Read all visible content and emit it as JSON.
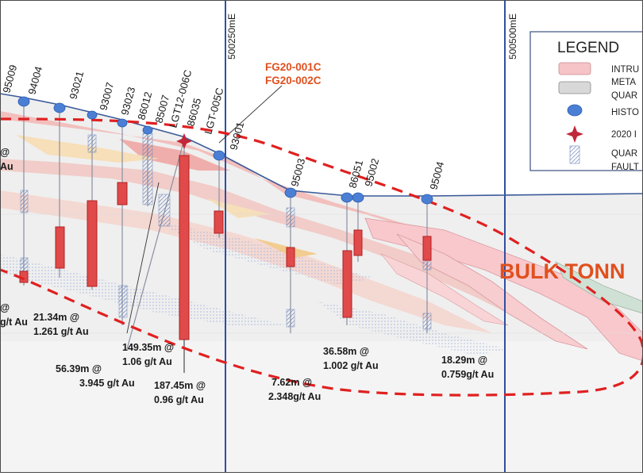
{
  "easting_labels": [
    {
      "id": "easting-500250",
      "text": "500250mE"
    },
    {
      "id": "easting-500500",
      "text": "500500mE"
    }
  ],
  "new_holes": [
    "FG20-001C",
    "FG20-002C"
  ],
  "collars": [
    {
      "id": "95009",
      "label": "95009"
    },
    {
      "id": "94004",
      "label": "94004"
    },
    {
      "id": "93021",
      "label": "93021"
    },
    {
      "id": "93007",
      "label": "93007"
    },
    {
      "id": "93023",
      "label": "93023"
    },
    {
      "id": "86012",
      "label": "86012"
    },
    {
      "id": "85007",
      "label": "85007"
    },
    {
      "id": "LGT12-006C",
      "label": "LGT12-006C"
    },
    {
      "id": "86035",
      "label": "86035"
    },
    {
      "id": "LGT-005C",
      "label": "LGT-005C"
    },
    {
      "id": "93001",
      "label": "93001"
    },
    {
      "id": "95003",
      "label": "95003"
    },
    {
      "id": "86051",
      "label": "86051"
    },
    {
      "id": "95002",
      "label": "95002"
    },
    {
      "id": "95004",
      "label": "95004"
    }
  ],
  "intercepts": [
    {
      "id": "left-edge",
      "line1": "@",
      "line2": "g/t Au"
    },
    {
      "id": "21-34",
      "line1": "21.34m @",
      "line2": "1.261 g/t Au"
    },
    {
      "id": "56-39",
      "line1": "56.39m @",
      "line2": "3.945 g/t Au"
    },
    {
      "id": "149-35",
      "line1": "149.35m @",
      "line2": "1.06 g/t Au"
    },
    {
      "id": "187-45",
      "line1": "187.45m @",
      "line2": "0.96 g/t Au"
    },
    {
      "id": "7-62",
      "line1": "7.62m @",
      "line2": "2.348g/t Au"
    },
    {
      "id": "36-58",
      "line1": "36.58m @",
      "line2": "1.002 g/t Au"
    },
    {
      "id": "18-29",
      "line1": "18.29m @",
      "line2": "0.759g/t Au"
    },
    {
      "id": "upper-left",
      "line1": "@",
      "line2": "Au"
    }
  ],
  "zone_label": "BULK TONN",
  "legend": {
    "title": "LEGEND",
    "items": [
      {
        "id": "intrusive",
        "text": "INTRU",
        "swatch": "pink-box"
      },
      {
        "id": "metasediment",
        "text": "META",
        "swatch": "grey-box"
      },
      {
        "id": "quartz",
        "text": "QUAR",
        "swatch": "none"
      },
      {
        "id": "historic",
        "text": "HISTO",
        "swatch": "blue-dot-icon"
      },
      {
        "id": "new-2020",
        "text": "2020 I",
        "swatch": "red-star-icon"
      },
      {
        "id": "quartz-fault",
        "text": "QUAR",
        "swatch": "hatch-icon"
      },
      {
        "id": "fault",
        "text": "FAULT",
        "swatch": "none"
      }
    ]
  },
  "colors": {
    "intercept_red": "#e04040",
    "outline_red": "#e02020",
    "orange_text": "#e0501e",
    "collar_blue": "#4a7fd4",
    "easting_line": "#2f4f9f",
    "intrusive_pink": "#f6c3c6"
  }
}
